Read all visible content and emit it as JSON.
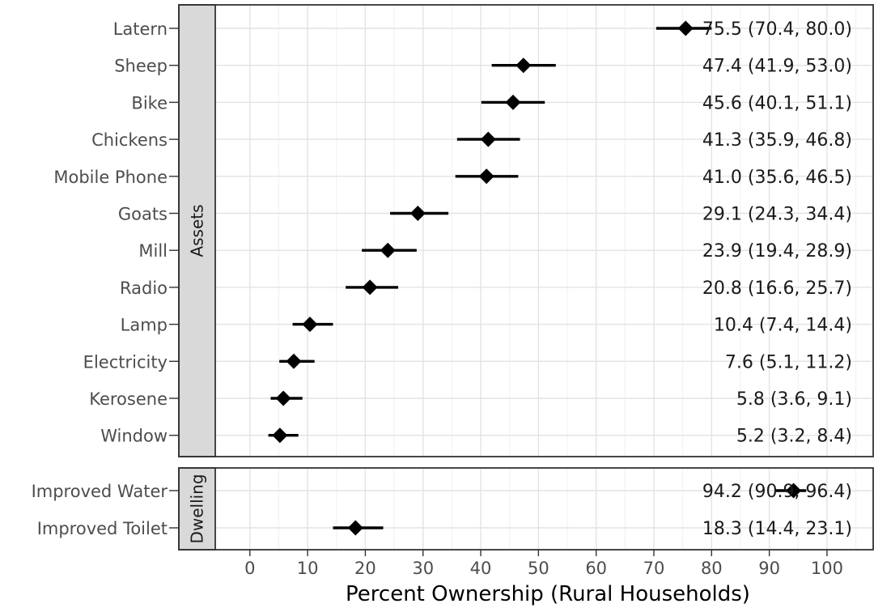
{
  "chart_data": {
    "type": "forest",
    "xlabel": "Percent Ownership (Rural Households)",
    "xlim": [
      -6,
      108
    ],
    "xticks": [
      0,
      10,
      20,
      30,
      40,
      50,
      60,
      70,
      80,
      90,
      100
    ],
    "grid": true,
    "panels": [
      {
        "name": "Assets",
        "rows": [
          {
            "label": "Latern",
            "value": 75.5,
            "lo": 70.4,
            "hi": 80.0,
            "text": "75.5 (70.4, 80.0)"
          },
          {
            "label": "Sheep",
            "value": 47.4,
            "lo": 41.9,
            "hi": 53.0,
            "text": "47.4 (41.9, 53.0)"
          },
          {
            "label": "Bike",
            "value": 45.6,
            "lo": 40.1,
            "hi": 51.1,
            "text": "45.6 (40.1, 51.1)"
          },
          {
            "label": "Chickens",
            "value": 41.3,
            "lo": 35.9,
            "hi": 46.8,
            "text": "41.3 (35.9, 46.8)"
          },
          {
            "label": "Mobile Phone",
            "value": 41.0,
            "lo": 35.6,
            "hi": 46.5,
            "text": "41.0 (35.6, 46.5)"
          },
          {
            "label": "Goats",
            "value": 29.1,
            "lo": 24.3,
            "hi": 34.4,
            "text": "29.1 (24.3, 34.4)"
          },
          {
            "label": "Mill",
            "value": 23.9,
            "lo": 19.4,
            "hi": 28.9,
            "text": "23.9 (19.4, 28.9)"
          },
          {
            "label": "Radio",
            "value": 20.8,
            "lo": 16.6,
            "hi": 25.7,
            "text": "20.8 (16.6, 25.7)"
          },
          {
            "label": "Lamp",
            "value": 10.4,
            "lo": 7.4,
            "hi": 14.4,
            "text": "10.4 (7.4, 14.4)"
          },
          {
            "label": "Electricity",
            "value": 7.6,
            "lo": 5.1,
            "hi": 11.2,
            "text": "7.6 (5.1, 11.2)"
          },
          {
            "label": "Kerosene",
            "value": 5.8,
            "lo": 3.6,
            "hi": 9.1,
            "text": "5.8 (3.6, 9.1)"
          },
          {
            "label": "Window",
            "value": 5.2,
            "lo": 3.2,
            "hi": 8.4,
            "text": "5.2 (3.2, 8.4)"
          }
        ]
      },
      {
        "name": "Dwelling",
        "rows": [
          {
            "label": "Improved Water",
            "value": 94.2,
            "lo": 90.9,
            "hi": 96.4,
            "text": "94.2 (90.9, 96.4)"
          },
          {
            "label": "Improved Toilet",
            "value": 18.3,
            "lo": 14.4,
            "hi": 23.1,
            "text": "18.3 (14.4, 23.1)"
          }
        ]
      }
    ]
  }
}
